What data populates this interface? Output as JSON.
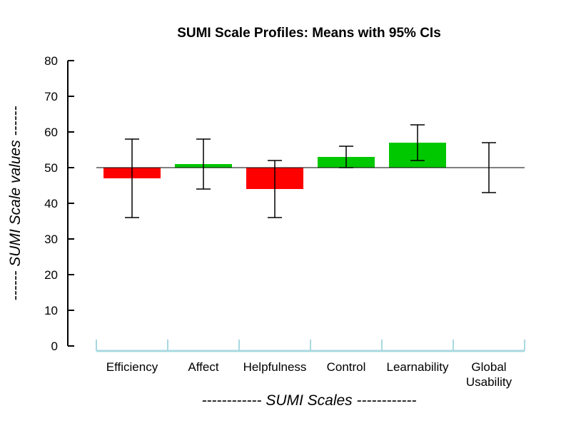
{
  "chart_data": {
    "type": "bar",
    "title": "SUMI Scale Profiles: Means with 95% CIs",
    "xlabel": "------------ SUMI Scales ------------",
    "ylabel": "------ SUMI Scale values ------",
    "ylim": [
      0,
      80
    ],
    "yticks": [
      "0",
      "10",
      "20",
      "30",
      "40",
      "50",
      "60",
      "70",
      "80"
    ],
    "baseline": 50,
    "categories": [
      [
        "Efficiency"
      ],
      [
        "Affect"
      ],
      [
        "Helpfulness"
      ],
      [
        "Control"
      ],
      [
        "Learnability"
      ],
      [
        "Global",
        "Usability"
      ]
    ],
    "series": [
      {
        "values": [
          47,
          51,
          44,
          53,
          57,
          50
        ],
        "ci_low": [
          36,
          44,
          36,
          50,
          52,
          43
        ],
        "ci_high": [
          58,
          58,
          52,
          56,
          62,
          57
        ]
      }
    ],
    "colors": {
      "above": "#00c800",
      "below": "#ff0000",
      "error_bar": "#000000",
      "x_axis": "#a8d8e0",
      "axis": "#000000"
    }
  }
}
